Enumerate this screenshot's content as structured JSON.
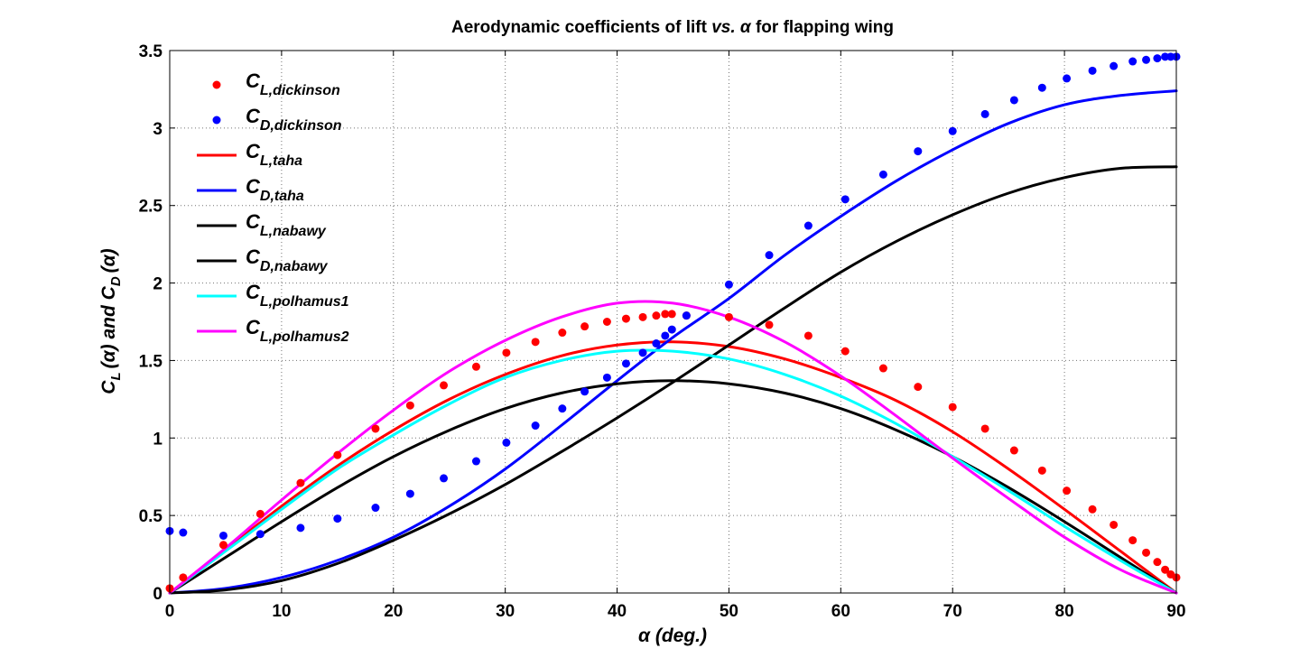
{
  "chart_data": {
    "type": "line",
    "title": {
      "prefix": "Aerodynamic coefficients of lift ",
      "vs": "vs.",
      "alpha": " α ",
      "suffix": " for flapping wing"
    },
    "xlabel": "α (deg.)",
    "ylabel": {
      "c1": "C",
      "s1": "L",
      "mid": "(α) and C",
      "s2": "D",
      "end": "(α)"
    },
    "xlim": [
      0,
      90
    ],
    "ylim": [
      0,
      3.5
    ],
    "xticks": [
      0,
      10,
      20,
      30,
      40,
      50,
      60,
      70,
      80,
      90
    ],
    "yticks": [
      0,
      0.5,
      1,
      1.5,
      2,
      2.5,
      3,
      3.5
    ],
    "xtick_labels": [
      "0",
      "10",
      "20",
      "30",
      "40",
      "50",
      "60",
      "70",
      "80",
      "90"
    ],
    "ytick_labels": [
      "0",
      "0.5",
      "1",
      "1.5",
      "2",
      "2.5",
      "3",
      "3.5"
    ],
    "grid": true,
    "legend_position": "top-left",
    "series": [
      {
        "name": "C_L,dickinson",
        "base": "C",
        "sub": "L,dickinson",
        "style": "markers",
        "color": "#ff0000",
        "x": [
          0,
          1.2,
          4.8,
          8.1,
          11.7,
          15.0,
          18.4,
          21.5,
          24.5,
          27.4,
          30.1,
          32.7,
          35.1,
          37.1,
          39.1,
          40.8,
          42.3,
          43.5,
          44.3,
          44.9,
          46.2,
          50.0,
          53.6,
          57.1,
          60.4,
          63.8,
          66.9,
          70.0,
          72.9,
          75.5,
          78.0,
          80.2,
          82.5,
          84.4,
          86.1,
          87.3,
          88.3,
          89.0,
          89.5,
          90.0
        ],
        "y": [
          0.03,
          0.1,
          0.31,
          0.51,
          0.71,
          0.89,
          1.06,
          1.21,
          1.34,
          1.46,
          1.55,
          1.62,
          1.68,
          1.72,
          1.75,
          1.77,
          1.78,
          1.79,
          1.8,
          1.8,
          1.79,
          1.78,
          1.73,
          1.66,
          1.56,
          1.45,
          1.33,
          1.2,
          1.06,
          0.92,
          0.79,
          0.66,
          0.54,
          0.44,
          0.34,
          0.26,
          0.2,
          0.15,
          0.12,
          0.1
        ]
      },
      {
        "name": "C_D,dickinson",
        "base": "C",
        "sub": "D,dickinson",
        "style": "markers",
        "color": "#0000ff",
        "x": [
          0,
          1.2,
          4.8,
          8.1,
          11.7,
          15.0,
          18.4,
          21.5,
          24.5,
          27.4,
          30.1,
          32.7,
          35.1,
          37.1,
          39.1,
          40.8,
          42.3,
          43.5,
          44.3,
          44.9,
          46.2,
          50.0,
          53.6,
          57.1,
          60.4,
          63.8,
          66.9,
          70.0,
          72.9,
          75.5,
          78.0,
          80.2,
          82.5,
          84.4,
          86.1,
          87.3,
          88.3,
          89.0,
          89.5,
          90.0
        ],
        "y": [
          0.4,
          0.39,
          0.37,
          0.38,
          0.42,
          0.48,
          0.55,
          0.64,
          0.74,
          0.85,
          0.97,
          1.08,
          1.19,
          1.3,
          1.39,
          1.48,
          1.55,
          1.61,
          1.66,
          1.7,
          1.79,
          1.99,
          2.18,
          2.37,
          2.54,
          2.7,
          2.85,
          2.98,
          3.09,
          3.18,
          3.26,
          3.32,
          3.37,
          3.4,
          3.43,
          3.44,
          3.45,
          3.46,
          3.46,
          3.46
        ]
      },
      {
        "name": "C_L,taha",
        "base": "C",
        "sub": "L,taha",
        "style": "line",
        "color": "#ff0000",
        "x": [
          0,
          5,
          10,
          15,
          20,
          25,
          30,
          35,
          40,
          45,
          50,
          55,
          60,
          65,
          70,
          75,
          80,
          85,
          90
        ],
        "y": [
          0,
          0.28,
          0.56,
          0.82,
          1.05,
          1.25,
          1.41,
          1.53,
          1.6,
          1.62,
          1.59,
          1.51,
          1.39,
          1.24,
          1.04,
          0.8,
          0.54,
          0.27,
          0
        ]
      },
      {
        "name": "C_D,taha",
        "base": "C",
        "sub": "D,taha",
        "style": "line",
        "color": "#0000ff",
        "x": [
          0,
          5,
          10,
          15,
          20,
          25,
          30,
          35,
          40,
          45,
          50,
          55,
          60,
          65,
          70,
          75,
          80,
          85,
          90
        ],
        "y": [
          0,
          0.03,
          0.1,
          0.21,
          0.36,
          0.56,
          0.8,
          1.08,
          1.37,
          1.65,
          1.9,
          2.18,
          2.43,
          2.66,
          2.86,
          3.03,
          3.15,
          3.21,
          3.24
        ]
      },
      {
        "name": "C_L,nabawy",
        "base": "C",
        "sub": "L,nabawy",
        "style": "line",
        "color": "#000000",
        "x": [
          0,
          5,
          10,
          15,
          20,
          25,
          30,
          35,
          40,
          45,
          50,
          55,
          60,
          65,
          70,
          75,
          80,
          85,
          90
        ],
        "y": [
          0,
          0.23,
          0.46,
          0.68,
          0.88,
          1.05,
          1.19,
          1.29,
          1.35,
          1.37,
          1.35,
          1.29,
          1.19,
          1.05,
          0.88,
          0.68,
          0.46,
          0.23,
          0
        ]
      },
      {
        "name": "C_D,nabawy",
        "base": "C",
        "sub": "D,nabawy",
        "style": "line",
        "color": "#000000",
        "x": [
          0,
          5,
          10,
          15,
          20,
          25,
          30,
          35,
          40,
          45,
          50,
          55,
          60,
          65,
          70,
          75,
          80,
          85,
          90
        ],
        "y": [
          0,
          0.02,
          0.08,
          0.19,
          0.34,
          0.51,
          0.7,
          0.91,
          1.13,
          1.36,
          1.6,
          1.84,
          2.07,
          2.27,
          2.44,
          2.58,
          2.68,
          2.74,
          2.75
        ]
      },
      {
        "name": "C_L,polhamus1",
        "base": "C",
        "sub": "L,polhamus1",
        "style": "line",
        "color": "#00ffff",
        "x": [
          0,
          5,
          10,
          15,
          20,
          25,
          30,
          35,
          40,
          45,
          50,
          55,
          60,
          65,
          70,
          75,
          80,
          85,
          90
        ],
        "y": [
          0,
          0.27,
          0.54,
          0.8,
          1.02,
          1.22,
          1.39,
          1.5,
          1.56,
          1.56,
          1.51,
          1.41,
          1.27,
          1.09,
          0.88,
          0.66,
          0.43,
          0.21,
          0
        ]
      },
      {
        "name": "C_L,polhamus2",
        "base": "C",
        "sub": "L,polhamus2",
        "style": "line",
        "color": "#ff00ff",
        "x": [
          0,
          5,
          10,
          15,
          20,
          25,
          30,
          35,
          40,
          45,
          50,
          55,
          60,
          65,
          70,
          75,
          80,
          85,
          90
        ],
        "y": [
          0,
          0.29,
          0.6,
          0.9,
          1.18,
          1.43,
          1.63,
          1.78,
          1.87,
          1.87,
          1.78,
          1.62,
          1.4,
          1.14,
          0.87,
          0.61,
          0.36,
          0.15,
          0
        ]
      }
    ]
  }
}
